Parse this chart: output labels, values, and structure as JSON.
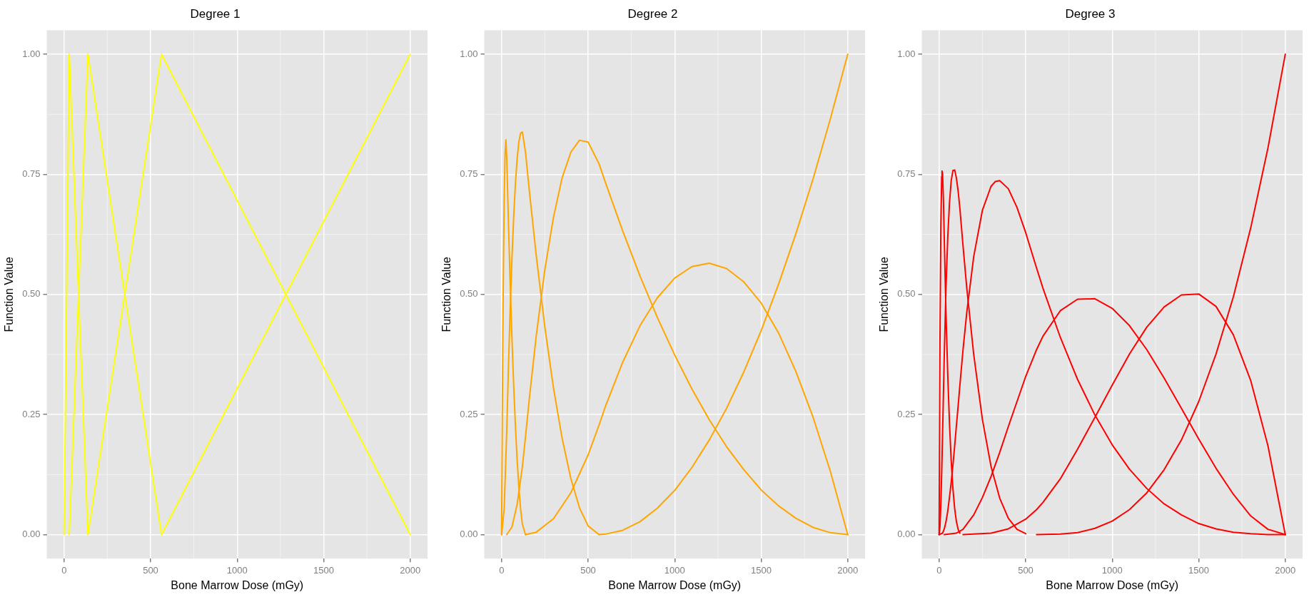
{
  "chart_data": [
    {
      "type": "line",
      "title": "Degree 1",
      "xlabel": "Bone Marrow Dose (mGy)",
      "ylabel": "Function Value",
      "xlim": [
        -100,
        2100
      ],
      "xticks": [
        0,
        500,
        1000,
        1500,
        2000
      ],
      "ylim": [
        -0.05,
        1.05
      ],
      "yticks": [
        {
          "value": 0,
          "label": "0.00"
        },
        {
          "value": 0.25,
          "label": "0.25"
        },
        {
          "value": 0.5,
          "label": "0.50"
        },
        {
          "value": 0.75,
          "label": "0.75"
        },
        {
          "value": 1,
          "label": "1.00"
        }
      ],
      "grid": true,
      "marker": "none",
      "series": [
        {
          "color": "#ffff00",
          "x": [
            0,
            30,
            138
          ],
          "values": [
            0,
            1,
            0
          ]
        },
        {
          "color": "#ffff00",
          "x": [
            30,
            138,
            563
          ],
          "values": [
            0,
            1,
            0
          ]
        },
        {
          "color": "#ffff00",
          "x": [
            138,
            563,
            2000
          ],
          "values": [
            0,
            1,
            0
          ]
        },
        {
          "color": "#ffff00",
          "x": [
            563,
            2000
          ],
          "values": [
            0,
            1
          ]
        }
      ]
    },
    {
      "type": "line",
      "title": "Degree 2",
      "xlabel": "Bone Marrow Dose (mGy)",
      "ylabel": "Function Value",
      "xlim": [
        -100,
        2100
      ],
      "xticks": [
        0,
        500,
        1000,
        1500,
        2000
      ],
      "ylim": [
        -0.05,
        1.05
      ],
      "yticks": [
        {
          "value": 0,
          "label": "0.00"
        },
        {
          "value": 0.25,
          "label": "0.25"
        },
        {
          "value": 0.5,
          "label": "0.50"
        },
        {
          "value": 0.75,
          "label": "0.75"
        },
        {
          "value": 1,
          "label": "1.00"
        }
      ],
      "grid": true,
      "marker": "none",
      "series": [
        {
          "color": "#ffa500",
          "x": [
            0,
            5,
            10,
            15,
            20,
            25,
            30,
            40,
            50,
            60,
            70,
            80,
            90,
            100,
            110,
            120,
            138
          ],
          "values": [
            0,
            0.3,
            0.531,
            0.696,
            0.792,
            0.822,
            0.783,
            0.644,
            0.52,
            0.408,
            0.31,
            0.226,
            0.155,
            0.097,
            0.053,
            0.022,
            0
          ]
        },
        {
          "color": "#ffa500",
          "x": [
            0,
            15,
            30,
            40,
            50,
            60,
            70,
            80,
            90,
            100,
            110,
            120,
            138,
            160,
            200,
            250,
            300,
            350,
            400,
            450,
            500,
            563
          ],
          "values": [
            0,
            0.054,
            0.217,
            0.354,
            0.473,
            0.576,
            0.662,
            0.731,
            0.783,
            0.818,
            0.836,
            0.838,
            0.797,
            0.717,
            0.582,
            0.432,
            0.305,
            0.2,
            0.117,
            0.056,
            0.018,
            0
          ]
        },
        {
          "color": "#ffa500",
          "x": [
            30,
            60,
            90,
            120,
            138,
            160,
            200,
            250,
            300,
            350,
            400,
            450,
            500,
            563,
            600,
            700,
            800,
            900,
            1000,
            1100,
            1200,
            1300,
            1400,
            1500,
            1600,
            1700,
            1800,
            1900,
            2000
          ],
          "values": [
            0,
            0.016,
            0.063,
            0.141,
            0.203,
            0.282,
            0.413,
            0.552,
            0.661,
            0.743,
            0.796,
            0.821,
            0.817,
            0.772,
            0.733,
            0.632,
            0.538,
            0.452,
            0.374,
            0.303,
            0.239,
            0.183,
            0.135,
            0.093,
            0.06,
            0.034,
            0.015,
            0.004,
            0
          ]
        },
        {
          "color": "#ffa500",
          "x": [
            138,
            200,
            300,
            400,
            500,
            563,
            600,
            700,
            800,
            900,
            1000,
            1100,
            1200,
            1300,
            1400,
            1500,
            1600,
            1700,
            1800,
            1900,
            2000
          ],
          "values": [
            0,
            0.005,
            0.033,
            0.087,
            0.166,
            0.228,
            0.267,
            0.359,
            0.435,
            0.493,
            0.534,
            0.558,
            0.565,
            0.554,
            0.526,
            0.482,
            0.42,
            0.34,
            0.244,
            0.131,
            0
          ]
        },
        {
          "color": "#ffa500",
          "x": [
            563,
            600,
            700,
            800,
            900,
            1000,
            1100,
            1200,
            1300,
            1400,
            1500,
            1600,
            1700,
            1800,
            1900,
            2000
          ],
          "values": [
            0,
            0.001,
            0.009,
            0.027,
            0.055,
            0.092,
            0.14,
            0.197,
            0.263,
            0.339,
            0.425,
            0.521,
            0.626,
            0.741,
            0.866,
            1
          ]
        }
      ]
    },
    {
      "type": "line",
      "title": "Degree 3",
      "xlabel": "Bone Marrow Dose (mGy)",
      "ylabel": "Function Value",
      "xlim": [
        -100,
        2100
      ],
      "xticks": [
        0,
        500,
        1000,
        1500,
        2000
      ],
      "ylim": [
        -0.05,
        1.05
      ],
      "yticks": [
        {
          "value": 0,
          "label": "0.00"
        },
        {
          "value": 0.25,
          "label": "0.25"
        },
        {
          "value": 0.5,
          "label": "0.50"
        },
        {
          "value": 0.75,
          "label": "0.75"
        },
        {
          "value": 1,
          "label": "1.00"
        }
      ],
      "grid": true,
      "marker": "none",
      "series": [
        {
          "color": "#ff0000",
          "x": [
            0,
            5,
            10,
            15,
            17,
            20,
            25,
            30,
            40,
            50,
            60,
            70,
            80,
            90,
            100,
            110,
            120
          ],
          "values": [
            0,
            0.405,
            0.641,
            0.745,
            0.757,
            0.751,
            0.696,
            0.613,
            0.457,
            0.332,
            0.231,
            0.153,
            0.095,
            0.054,
            0.027,
            0.011,
            0.003
          ]
        },
        {
          "color": "#ff0000",
          "x": [
            0,
            5,
            10,
            15,
            20,
            25,
            30,
            40,
            50,
            60,
            70,
            80,
            90,
            100,
            110,
            120,
            138,
            160,
            200,
            250,
            300,
            350,
            400,
            450,
            500
          ],
          "values": [
            0,
            0.017,
            0.062,
            0.129,
            0.209,
            0.293,
            0.375,
            0.516,
            0.619,
            0.691,
            0.737,
            0.758,
            0.759,
            0.742,
            0.715,
            0.679,
            0.602,
            0.513,
            0.375,
            0.24,
            0.142,
            0.076,
            0.034,
            0.011,
            0.002
          ]
        },
        {
          "color": "#ff0000",
          "x": [
            0,
            20,
            30,
            40,
            50,
            60,
            70,
            80,
            90,
            100,
            110,
            120,
            138,
            160,
            200,
            250,
            300,
            325,
            350,
            400,
            450,
            500,
            563,
            600,
            700,
            800,
            900,
            1000,
            1100,
            1200,
            1300,
            1400,
            1500,
            1600,
            1700,
            1800,
            1900,
            2000
          ],
          "values": [
            0,
            0.003,
            0.012,
            0.027,
            0.049,
            0.078,
            0.109,
            0.145,
            0.185,
            0.227,
            0.268,
            0.311,
            0.384,
            0.463,
            0.579,
            0.675,
            0.725,
            0.735,
            0.737,
            0.72,
            0.681,
            0.629,
            0.555,
            0.513,
            0.411,
            0.323,
            0.249,
            0.187,
            0.136,
            0.096,
            0.064,
            0.041,
            0.023,
            0.012,
            0.005,
            0.002,
            0,
            0
          ]
        },
        {
          "color": "#ff0000",
          "x": [
            30,
            100,
            138,
            200,
            250,
            300,
            350,
            400,
            450,
            500,
            563,
            600,
            700,
            800,
            900,
            1000,
            1100,
            1200,
            1300,
            1400,
            1500,
            1600,
            1700,
            1800,
            1900,
            2000
          ],
          "values": [
            0,
            0.003,
            0.011,
            0.041,
            0.077,
            0.121,
            0.171,
            0.225,
            0.277,
            0.329,
            0.385,
            0.413,
            0.466,
            0.49,
            0.491,
            0.471,
            0.435,
            0.385,
            0.326,
            0.263,
            0.199,
            0.138,
            0.084,
            0.039,
            0.011,
            0
          ]
        },
        {
          "color": "#ff0000",
          "x": [
            138,
            300,
            400,
            500,
            563,
            600,
            700,
            800,
            900,
            1000,
            1100,
            1200,
            1300,
            1400,
            1500,
            1600,
            1700,
            1800,
            1900,
            2000
          ],
          "values": [
            0,
            0.003,
            0.012,
            0.032,
            0.052,
            0.067,
            0.116,
            0.178,
            0.244,
            0.311,
            0.376,
            0.432,
            0.474,
            0.499,
            0.501,
            0.475,
            0.416,
            0.321,
            0.185,
            0
          ]
        },
        {
          "color": "#ff0000",
          "x": [
            563,
            700,
            800,
            900,
            1000,
            1100,
            1200,
            1300,
            1400,
            1500,
            1600,
            1700,
            1800,
            1900,
            2000
          ],
          "values": [
            0,
            0.001,
            0.004,
            0.013,
            0.028,
            0.052,
            0.087,
            0.135,
            0.197,
            0.277,
            0.376,
            0.495,
            0.638,
            0.805,
            1
          ]
        }
      ]
    }
  ]
}
